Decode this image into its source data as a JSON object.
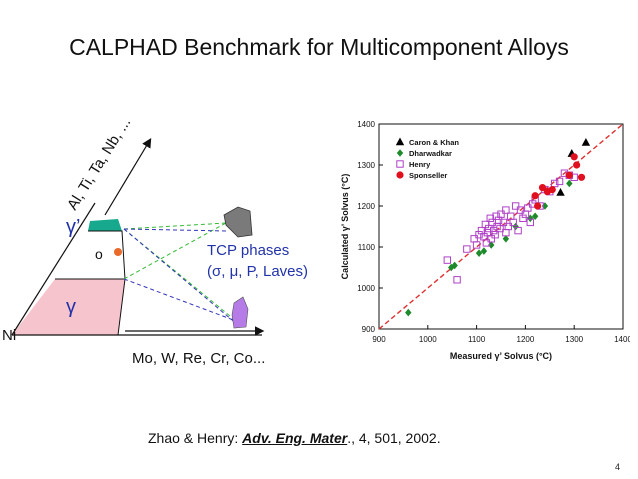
{
  "slide": {
    "title": "CALPHAD Benchmark for Multicomponent Alloys",
    "citation_prefix": "Zhao & Henry: ",
    "citation_journal": "Adv. Eng. Mater",
    "citation_suffix": "., 4, 501, 2002.",
    "page_number": "4"
  },
  "diagram": {
    "axis_top_label": "Al, Ti, Ta, Nb, ...",
    "axis_bottom_label": "Mo, W, Re, Cr, Co...",
    "corner_label": "Ni",
    "gamma_prime_label": "γ’",
    "gamma_label": "γ",
    "open_circle_label": "o",
    "tcp_line1": "TCP phases",
    "tcp_line2": "(σ, μ, P, Laves)",
    "colors": {
      "gamma_region": "#f6c4cc",
      "gamma_prime_region": "#17a98d",
      "tcp_gray": "#7a7a7a",
      "tcp_purple": "#b57be6",
      "tie_green": "#33bb33",
      "tie_blue": "#3333bb",
      "alloy_dot": "#ea6a2a",
      "blue_text": "#2233aa"
    }
  },
  "chart_data": {
    "type": "scatter",
    "xlabel": "Measured γ’ Solvus (°C)",
    "ylabel": "Calculated γ’ Solvus (°C)",
    "xlim": [
      900,
      1400
    ],
    "ylim": [
      900,
      1400
    ],
    "xticks": [
      900,
      1000,
      1100,
      1200,
      1300,
      1400
    ],
    "yticks": [
      900,
      1000,
      1100,
      1200,
      1300,
      1400
    ],
    "legend_position": "top-left",
    "reference_line": "y = x",
    "series": [
      {
        "name": "Caron & Khan",
        "marker": "triangle",
        "color": "#000000",
        "x": [
          1272,
          1295,
          1324
        ],
        "y": [
          1233,
          1328,
          1355
        ]
      },
      {
        "name": "Dharwadkar",
        "marker": "diamond",
        "color": "#1e8a2b",
        "x": [
          960,
          1048,
          1055,
          1105,
          1115,
          1130,
          1160,
          1180,
          1210,
          1220,
          1240,
          1290
        ],
        "y": [
          940,
          1050,
          1055,
          1085,
          1090,
          1105,
          1120,
          1150,
          1170,
          1175,
          1200,
          1255
        ]
      },
      {
        "name": "Henry",
        "marker": "open-square",
        "color": "#b040c8",
        "x": [
          1040,
          1060,
          1080,
          1095,
          1100,
          1105,
          1110,
          1115,
          1118,
          1120,
          1122,
          1125,
          1128,
          1130,
          1132,
          1135,
          1138,
          1140,
          1142,
          1145,
          1148,
          1150,
          1155,
          1160,
          1165,
          1170,
          1175,
          1180,
          1185,
          1190,
          1195,
          1200,
          1205,
          1210,
          1215,
          1220,
          1230,
          1240,
          1250,
          1260,
          1270,
          1280,
          1290,
          1300,
          1160
        ],
        "y": [
          1068,
          1020,
          1095,
          1120,
          1105,
          1130,
          1140,
          1125,
          1155,
          1110,
          1135,
          1145,
          1170,
          1120,
          1160,
          1140,
          1130,
          1175,
          1150,
          1165,
          1145,
          1180,
          1160,
          1135,
          1150,
          1175,
          1160,
          1200,
          1140,
          1190,
          1170,
          1180,
          1195,
          1160,
          1205,
          1215,
          1200,
          1240,
          1235,
          1255,
          1260,
          1280,
          1275,
          1270,
          1190
        ]
      },
      {
        "name": "Sponseller",
        "marker": "circle",
        "color": "#e0101e",
        "x": [
          1220,
          1225,
          1235,
          1245,
          1255,
          1290,
          1300,
          1305,
          1315
        ],
        "y": [
          1225,
          1200,
          1245,
          1235,
          1240,
          1275,
          1320,
          1300,
          1270
        ]
      }
    ]
  }
}
